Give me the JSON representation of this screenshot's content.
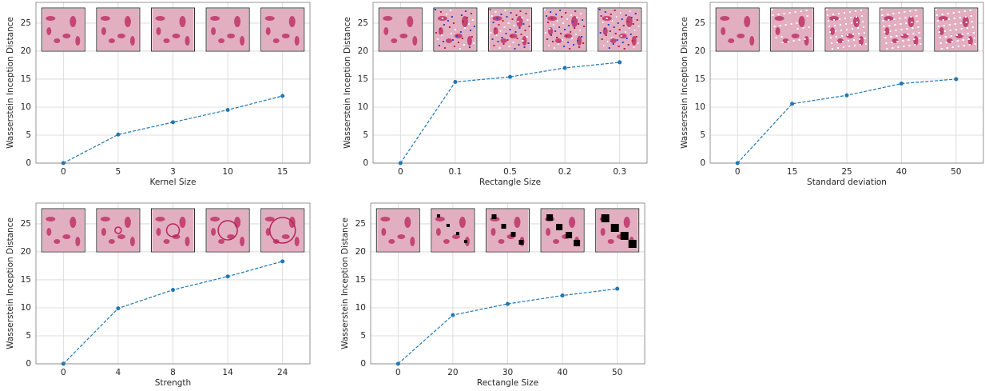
{
  "chart_data": [
    {
      "type": "line",
      "y_label": "Wasserstein Inception Distance",
      "x_label": "Kernel Size",
      "categories": [
        "0",
        "5",
        "3",
        "10",
        "15"
      ],
      "values": [
        0,
        5.1,
        7.3,
        9.5,
        12.0
      ],
      "color": "#1f77b4",
      "ylim": [
        0,
        28.7
      ],
      "yticks": [
        0,
        5,
        10,
        15,
        20,
        25
      ],
      "grid": true
    },
    {
      "type": "line",
      "y_label": "Wasserstein Inception Distance",
      "x_label": "Rectangle Size",
      "categories": [
        "0",
        "0.1",
        "0.5",
        "0.2",
        "0.3"
      ],
      "values": [
        0,
        14.5,
        15.4,
        17.0,
        18.0
      ],
      "color": "#1f77b4",
      "ylim": [
        0,
        28.7
      ],
      "yticks": [
        0,
        5,
        10,
        15,
        20,
        25
      ],
      "grid": true
    },
    {
      "type": "line",
      "y_label": "Wasserstein Inception Distance",
      "x_label": "Standard deviation",
      "categories": [
        "0",
        "15",
        "25",
        "40",
        "50"
      ],
      "values": [
        0,
        10.6,
        12.1,
        14.2,
        15.0
      ],
      "color": "#1f77b4",
      "ylim": [
        0,
        28.7
      ],
      "yticks": [
        0,
        5,
        10,
        15,
        20,
        25
      ],
      "grid": true
    },
    {
      "type": "line",
      "y_label": "Wasserstein Inception Distance",
      "x_label": "Strength",
      "categories": [
        "0",
        "4",
        "8",
        "14",
        "24"
      ],
      "values": [
        0,
        9.9,
        13.2,
        15.6,
        18.3
      ],
      "color": "#1f77b4",
      "ylim": [
        0,
        28.7
      ],
      "yticks": [
        0,
        5,
        10,
        15,
        20,
        25
      ],
      "grid": true
    },
    {
      "type": "line",
      "y_label": "Wasserstein Inception Distance",
      "x_label": "Rectangle Size",
      "categories": [
        "0",
        "20",
        "30",
        "40",
        "50"
      ],
      "values": [
        0,
        8.7,
        10.7,
        12.2,
        13.4
      ],
      "color": "#1f77b4",
      "ylim": [
        0,
        28.7
      ],
      "yticks": [
        0,
        5,
        10,
        15,
        20,
        25
      ],
      "grid": true
    }
  ]
}
